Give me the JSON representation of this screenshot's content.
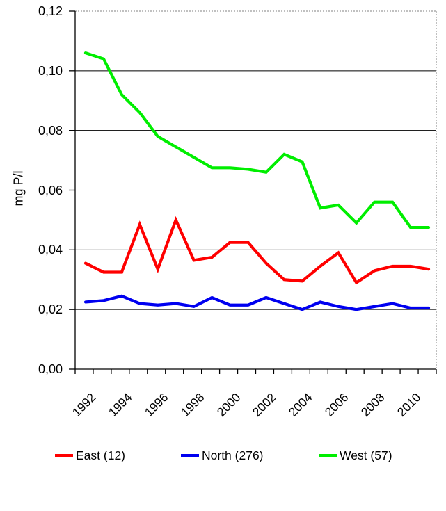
{
  "chart_data": {
    "type": "line",
    "title": "",
    "ylabel": "mg P/l",
    "xlabel": "",
    "ylim": [
      0,
      0.12
    ],
    "grid": "horizontal",
    "legend_position": "bottom",
    "background_color": "#FFFFFF",
    "grid_color": "#000000",
    "plot_border_color": "#808080",
    "yticks": [
      {
        "value": 0.0,
        "label": "0,00"
      },
      {
        "value": 0.02,
        "label": "0,02"
      },
      {
        "value": 0.04,
        "label": "0,04"
      },
      {
        "value": 0.06,
        "label": "0,06"
      },
      {
        "value": 0.08,
        "label": "0,08"
      },
      {
        "value": 0.1,
        "label": "0,10"
      },
      {
        "value": 0.12,
        "label": "0,12"
      }
    ],
    "categories": [
      "1992",
      "1993",
      "1994",
      "1995",
      "1996",
      "1997",
      "1998",
      "1999",
      "2000",
      "2001",
      "2002",
      "2003",
      "2004",
      "2005",
      "2006",
      "2007",
      "2008",
      "2009",
      "2010",
      "2011"
    ],
    "xtick_labels": [
      "1992",
      "1994",
      "1996",
      "1998",
      "2000",
      "2002",
      "2004",
      "2006",
      "2008",
      "2010"
    ],
    "xtick_label_every": 2,
    "series": [
      {
        "name": "East (12)",
        "color": "#FF0000",
        "values": [
          0.0355,
          0.0325,
          0.0325,
          0.0485,
          0.0335,
          0.05,
          0.0365,
          0.0375,
          0.0425,
          0.0425,
          0.0355,
          0.03,
          0.0295,
          0.0345,
          0.039,
          0.029,
          0.033,
          0.0345,
          0.0345,
          0.0335
        ]
      },
      {
        "name": "North (276)",
        "color": "#0000F0",
        "values": [
          0.0225,
          0.023,
          0.0245,
          0.022,
          0.0215,
          0.022,
          0.021,
          0.024,
          0.0215,
          0.0215,
          0.024,
          0.022,
          0.02,
          0.0225,
          0.021,
          0.02,
          0.021,
          0.022,
          0.0205,
          0.0205
        ]
      },
      {
        "name": "West (57)",
        "color": "#00EE00",
        "values": [
          0.106,
          0.104,
          0.092,
          0.086,
          0.078,
          0.0745,
          0.071,
          0.0675,
          0.0675,
          0.067,
          0.066,
          0.072,
          0.0695,
          0.054,
          0.055,
          0.049,
          0.056,
          0.056,
          0.0475,
          0.0475
        ]
      }
    ]
  }
}
